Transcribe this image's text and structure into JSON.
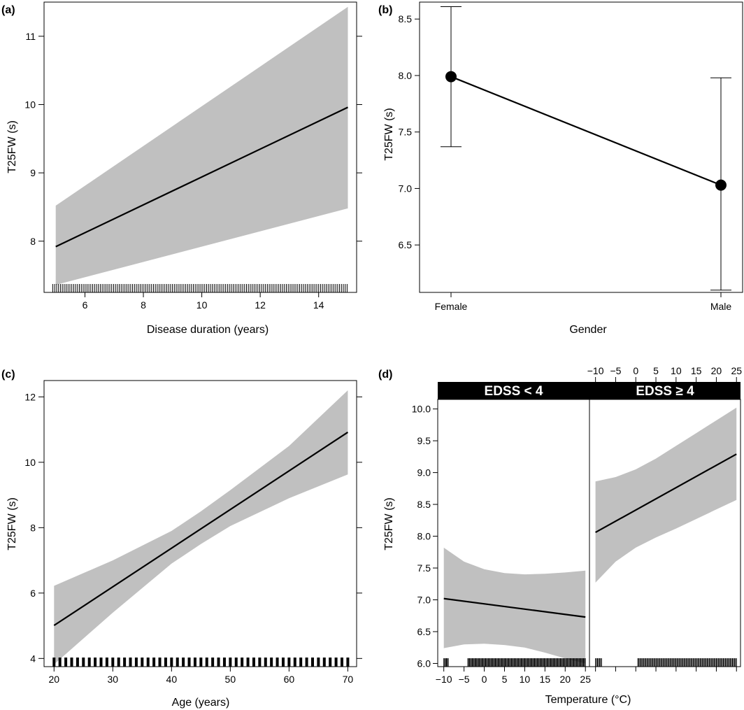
{
  "chart_data": [
    {
      "id": "a",
      "panel_label": "(a)",
      "type": "line",
      "title": "",
      "xlabel": "Disease duration (years)",
      "ylabel": "T25FW (s)",
      "xlim": [
        4.6,
        15.3
      ],
      "ylim": [
        7.25,
        11.5
      ],
      "xticks": [
        6,
        8,
        10,
        12,
        14
      ],
      "yticks": [
        8,
        9,
        10,
        11
      ],
      "series": [
        {
          "name": "fit",
          "x": [
            5,
            15
          ],
          "y": [
            7.92,
            9.96
          ]
        },
        {
          "name": "ci_lower",
          "x": [
            5,
            15
          ],
          "y": [
            7.36,
            8.48
          ]
        },
        {
          "name": "ci_upper",
          "x": [
            5,
            15
          ],
          "y": [
            8.52,
            11.43
          ]
        }
      ],
      "rug": {
        "start": 4.9,
        "end": 15,
        "step": 0.065
      }
    },
    {
      "id": "b",
      "panel_label": "(b)",
      "type": "scatter",
      "title": "",
      "xlabel": "Gender",
      "ylabel": "T25FW (s)",
      "ylim": [
        6.08,
        8.65
      ],
      "yticks": [
        6.5,
        7.0,
        7.5,
        8.0,
        8.5
      ],
      "ytick_labels": [
        "6.5",
        "7.0",
        "7.5",
        "8.0",
        "8.5"
      ],
      "categories": [
        "Female",
        "Male"
      ],
      "values": [
        7.99,
        7.03
      ],
      "lower": [
        7.37,
        6.1
      ],
      "upper": [
        8.61,
        7.98
      ]
    },
    {
      "id": "c",
      "panel_label": "(c)",
      "type": "line",
      "title": "",
      "xlabel": "Age (years)",
      "ylabel": "T25FW (s)",
      "xlim": [
        18.3,
        71.5
      ],
      "ylim": [
        3.75,
        12.5
      ],
      "xticks": [
        20,
        30,
        40,
        50,
        60,
        70
      ],
      "yticks": [
        4,
        6,
        8,
        10,
        12
      ],
      "series": [
        {
          "name": "fit",
          "x": [
            20,
            70
          ],
          "y": [
            5.01,
            10.92
          ]
        },
        {
          "name": "ci_lower",
          "x": [
            20,
            30,
            40,
            45,
            50,
            60,
            70
          ],
          "y": [
            3.82,
            5.4,
            6.9,
            7.5,
            8.05,
            8.9,
            9.63
          ]
        },
        {
          "name": "ci_upper",
          "x": [
            20,
            30,
            40,
            45,
            50,
            60,
            70
          ],
          "y": [
            6.22,
            7.0,
            7.9,
            8.5,
            9.15,
            10.5,
            12.2
          ]
        }
      ],
      "rug": {
        "start": 20,
        "end": 70,
        "step": 1
      }
    },
    {
      "id": "d",
      "panel_label": "(d)",
      "type": "line",
      "title": "",
      "xlabel": "Temperature (°C)",
      "ylabel": "T25FW (s)",
      "xlim": [
        -11.5,
        26
      ],
      "ylim": [
        5.95,
        10.15
      ],
      "xticks": [
        -10,
        -5,
        0,
        5,
        10,
        15,
        20,
        25
      ],
      "xtick_labels": [
        "−10",
        "−5",
        "0",
        "5",
        "10",
        "15",
        "20",
        "25"
      ],
      "yticks": [
        6.0,
        6.5,
        7.0,
        7.5,
        8.0,
        8.5,
        9.0,
        9.5,
        10.0
      ],
      "ytick_labels": [
        "6.0",
        "6.5",
        "7.0",
        "7.5",
        "8.0",
        "8.5",
        "9.0",
        "9.5",
        "10.0"
      ],
      "panels": [
        {
          "strip": "EDSS < 4",
          "fit": {
            "x": [
              -10,
              25
            ],
            "y": [
              7.02,
              6.73
            ]
          },
          "ci_upper": {
            "x": [
              -10,
              -5,
              0,
              5,
              10,
              15,
              20,
              25
            ],
            "y": [
              7.82,
              7.6,
              7.48,
              7.42,
              7.4,
              7.41,
              7.43,
              7.46
            ]
          },
          "ci_lower": {
            "x": [
              -10,
              -5,
              0,
              5,
              10,
              15,
              20,
              25
            ],
            "y": [
              6.24,
              6.3,
              6.31,
              6.29,
              6.25,
              6.17,
              6.08,
              6.0
            ]
          },
          "rug": {
            "start": -10,
            "end": 25,
            "step": 0.22,
            "gaps": [
              [
                -8.8,
                -4.2
              ]
            ]
          }
        },
        {
          "strip": "EDSS ≥ 4",
          "fit": {
            "x": [
              -10,
              25
            ],
            "y": [
              8.06,
              9.29
            ]
          },
          "ci_upper": {
            "x": [
              -10,
              -5,
              0,
              5,
              10,
              15,
              20,
              25
            ],
            "y": [
              8.86,
              8.93,
              9.05,
              9.22,
              9.42,
              9.62,
              9.82,
              10.02
            ]
          },
          "ci_lower": {
            "x": [
              -10,
              -5,
              0,
              5,
              10,
              15,
              20,
              25
            ],
            "y": [
              7.27,
              7.6,
              7.82,
              7.98,
              8.12,
              8.27,
              8.42,
              8.57
            ]
          },
          "rug": {
            "start": -10,
            "end": 25,
            "step": 0.25,
            "gaps": [
              [
                -8.5,
                0.5
              ]
            ]
          }
        }
      ]
    }
  ]
}
